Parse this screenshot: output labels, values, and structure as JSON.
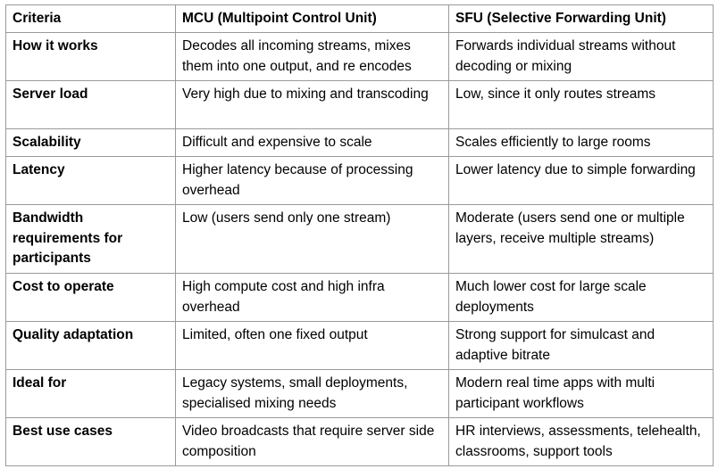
{
  "table": {
    "headers": [
      "Criteria",
      "MCU (Multipoint Control Unit)",
      "SFU (Selective Forwarding Unit)"
    ],
    "rows": [
      [
        "How it works",
        "Decodes all incoming streams, mixes them into one output, and re encodes",
        "Forwards individual streams without decoding or mixing"
      ],
      [
        "Server load",
        "Very high due to mixing and transcoding",
        "Low, since it only routes streams"
      ],
      [
        "Scalability",
        "Difficult and expensive to scale",
        "Scales efficiently to large rooms"
      ],
      [
        "Latency",
        "Higher latency because of processing overhead",
        "Lower latency due to simple forwarding"
      ],
      [
        "Bandwidth requirements for participants",
        "Low (users send only one stream)",
        "Moderate (users send one or multiple layers, receive multiple streams)"
      ],
      [
        "Cost to operate",
        "High compute cost and high infra overhead",
        "Much lower cost for large scale deployments"
      ],
      [
        "Quality adaptation",
        "Limited, often one fixed output",
        "Strong support for simulcast and adaptive bitrate"
      ],
      [
        "Ideal for",
        "Legacy systems, small deployments, specialised mixing needs",
        "Modern real time apps with multi participant workflows"
      ],
      [
        "Best use cases",
        "Video broadcasts that require server side composition",
        "HR interviews, assessments, telehealth, classrooms, support tools"
      ]
    ]
  }
}
